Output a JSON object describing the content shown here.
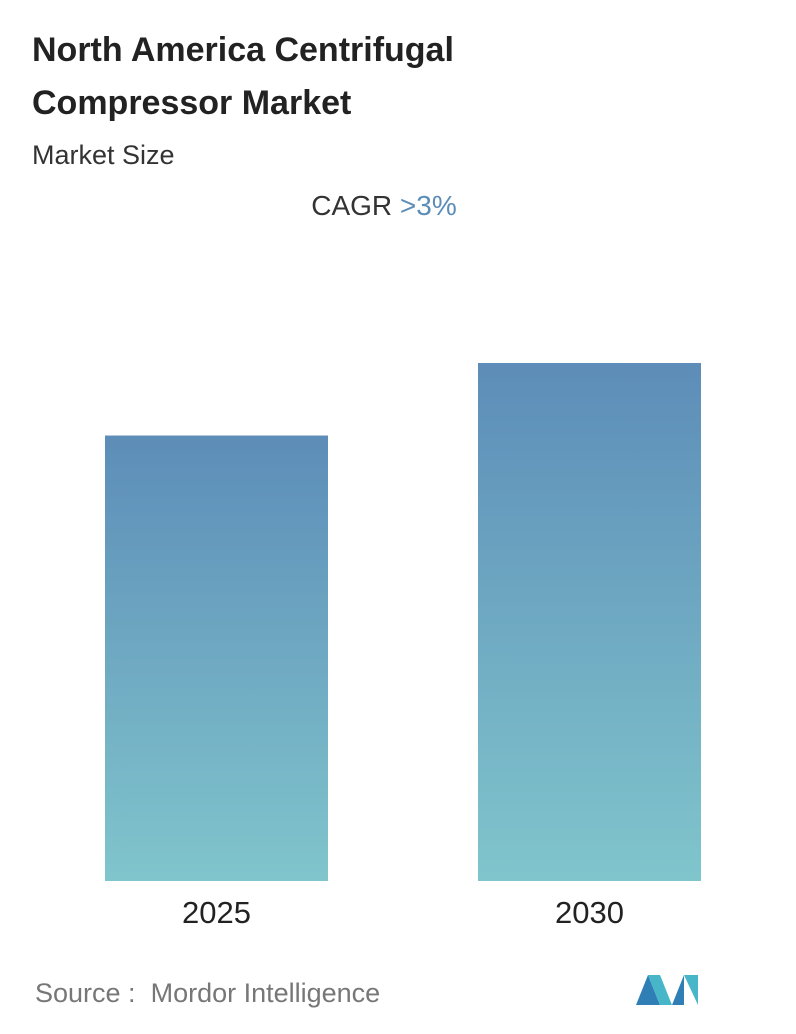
{
  "chart_data": {
    "type": "bar",
    "title": "North America Centrifugal Compressor Market",
    "subtitle": "Market Size",
    "cagr_label": "CAGR",
    "cagr_value": ">3%",
    "categories": [
      "2025",
      "2030"
    ],
    "values": [
      86,
      100
    ],
    "ylim": [
      0,
      100
    ],
    "colors": [
      "#5d8db8",
      "#80c5cc"
    ],
    "source_label": "Source :",
    "source": "Mordor Intelligence"
  }
}
